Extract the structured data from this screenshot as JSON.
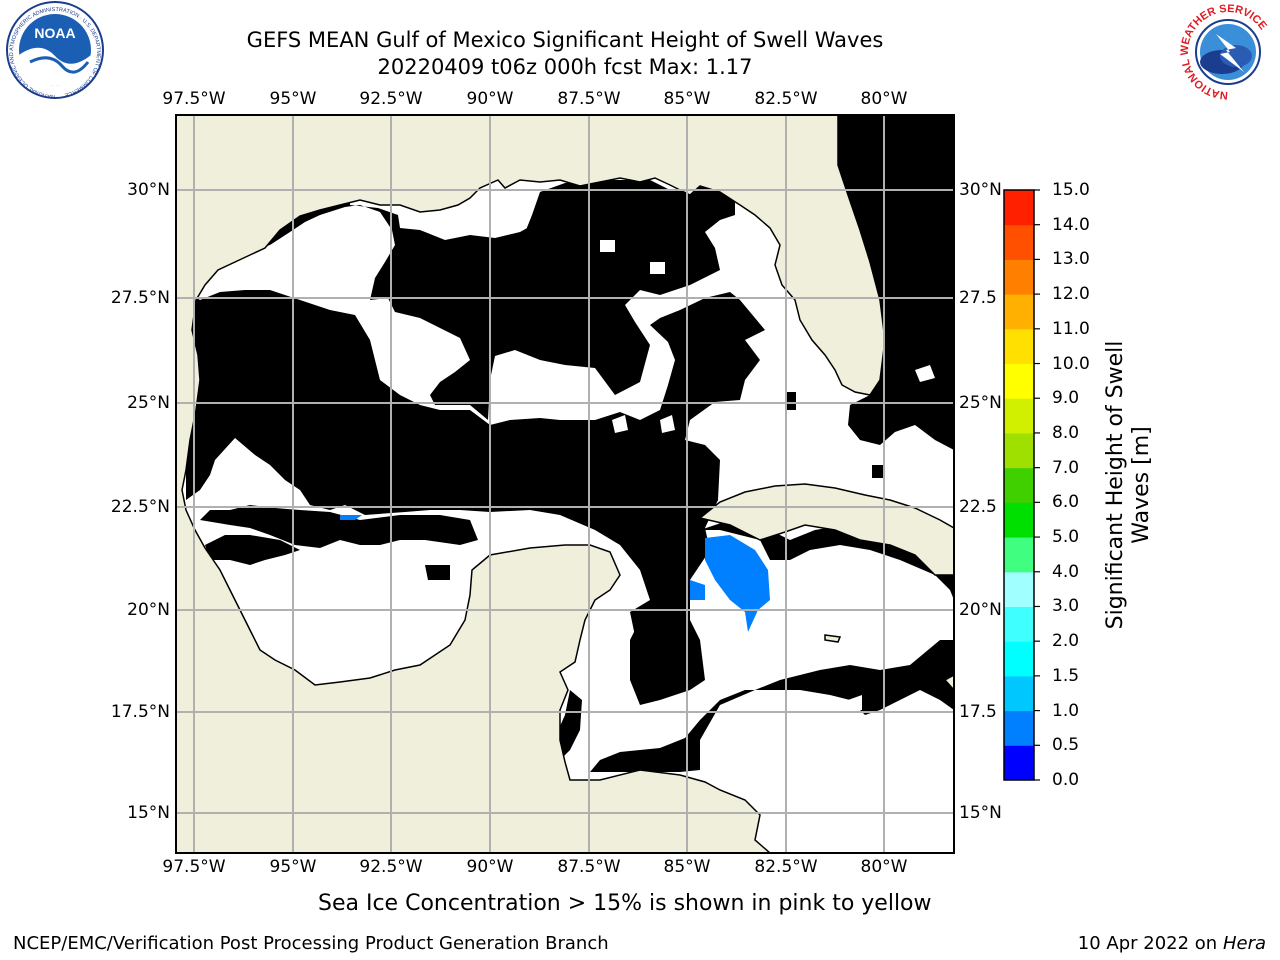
{
  "titles": {
    "line1": "GEFS MEAN Gulf of Mexico Significant Height of Swell Waves",
    "line2": "20220409 t06z 000h fcst   Max: 1.17"
  },
  "logos": {
    "left_text": "NOAA",
    "left_ring_text": "NATIONAL OCEANIC AND ATMOSPHERIC ADMINISTRATION · U.S. DEPARTMENT OF COMMERCE",
    "right_ring_text": "NATIONAL WEATHER SERVICE"
  },
  "lon_ticks": [
    "97.5°W",
    "95°W",
    "92.5°W",
    "90°W",
    "87.5°W",
    "85°W",
    "82.5°W",
    "80°W"
  ],
  "lat_ticks_left": [
    "30°N",
    "27.5°N",
    "25°N",
    "22.5°N",
    "20°N",
    "17.5°N",
    "15°N"
  ],
  "lat_ticks_right": [
    "30°N",
    "27.5",
    "25°N",
    "22.5",
    "20°N",
    "17.5",
    "15°N"
  ],
  "colorbar": {
    "label": "Significant Height of Swell Waves [m]",
    "label_line1": "Significant Height of Swell",
    "label_line2": "Waves [m]",
    "ticks": [
      "0.0",
      "0.5",
      "1.0",
      "1.5",
      "2.0",
      "3.0",
      "4.0",
      "5.0",
      "6.0",
      "7.0",
      "8.0",
      "9.0",
      "10.0",
      "11.0",
      "12.0",
      "13.0",
      "14.0",
      "15.0"
    ],
    "colors": [
      "#0000ff",
      "#0080ff",
      "#00c8ff",
      "#00ffff",
      "#40ffff",
      "#a0ffff",
      "#40ff80",
      "#00e000",
      "#40d000",
      "#a0e000",
      "#d0f000",
      "#ffff00",
      "#ffe000",
      "#ffb000",
      "#ff8000",
      "#ff5000",
      "#ff2000",
      "#ff0000"
    ]
  },
  "colors": {
    "land": "#efefdb",
    "swell_low": "#0000ff",
    "swell_mid": "#0080ff",
    "swell_high": "#00ffff",
    "grid": "#b0b0b0"
  },
  "caption": "Sea Ice Concentration > 15% is shown in pink to yellow",
  "footer_left": "NCEP/EMC/Verification Post Processing Product Generation Branch",
  "footer_right_date": "10 Apr 2022 on",
  "footer_right_host": "Hera"
}
